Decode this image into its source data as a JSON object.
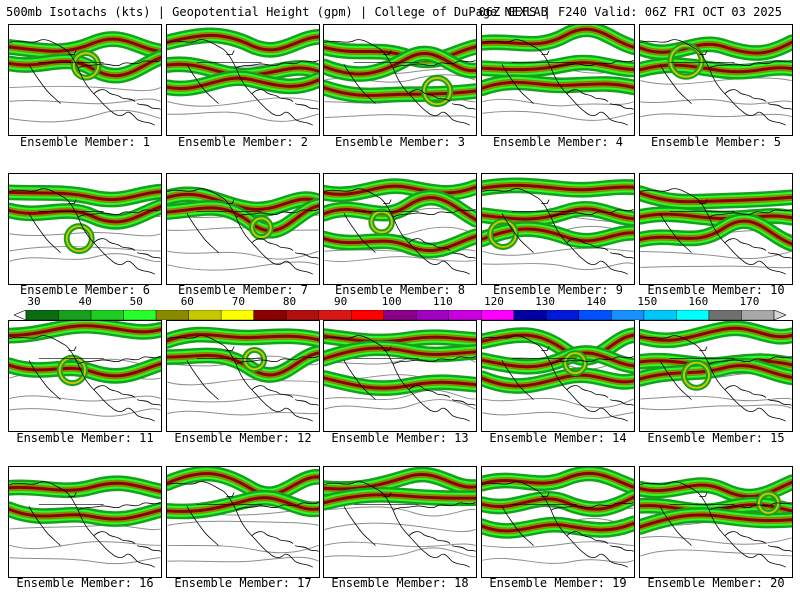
{
  "header": {
    "title_left": "500mb Isotachs (kts) | Geopotential Height (gpm) | College of DuPage NEXLAB",
    "title_right": "06Z GEFS | F240 Valid: 06Z FRI OCT 03 2025"
  },
  "colorbar": {
    "labels": [
      "30",
      "40",
      "50",
      "60",
      "70",
      "80",
      "90",
      "100",
      "110",
      "120",
      "130",
      "140",
      "150",
      "160",
      "170"
    ],
    "colors": [
      "#0b6d13",
      "#16a01d",
      "#1fcc22",
      "#26ff2a",
      "#8a8a00",
      "#c8c800",
      "#ffff00",
      "#8b0000",
      "#b01010",
      "#d81818",
      "#ff0000",
      "#8b008b",
      "#a000c0",
      "#c800e0",
      "#ff00ff",
      "#0000a0",
      "#0018d8",
      "#0050ff",
      "#1890ff",
      "#00c8ff",
      "#00ffff",
      "#707070",
      "#a8a8a8"
    ]
  },
  "panels": [
    {
      "label": "Ensemble Member: 1"
    },
    {
      "label": "Ensemble Member: 2"
    },
    {
      "label": "Ensemble Member: 3"
    },
    {
      "label": "Ensemble Member: 4"
    },
    {
      "label": "Ensemble Member: 5"
    },
    {
      "label": "Ensemble Member: 6"
    },
    {
      "label": "Ensemble Member: 7"
    },
    {
      "label": "Ensemble Member: 8"
    },
    {
      "label": "Ensemble Member: 9"
    },
    {
      "label": "Ensemble Member: 10"
    },
    {
      "label": "Ensemble Member: 11"
    },
    {
      "label": "Ensemble Member: 12"
    },
    {
      "label": "Ensemble Member: 13"
    },
    {
      "label": "Ensemble Member: 14"
    },
    {
      "label": "Ensemble Member: 15"
    },
    {
      "label": "Ensemble Member: 16"
    },
    {
      "label": "Ensemble Member: 17"
    },
    {
      "label": "Ensemble Member: 18"
    },
    {
      "label": "Ensemble Member: 19"
    },
    {
      "label": "Ensemble Member: 20"
    }
  ]
}
